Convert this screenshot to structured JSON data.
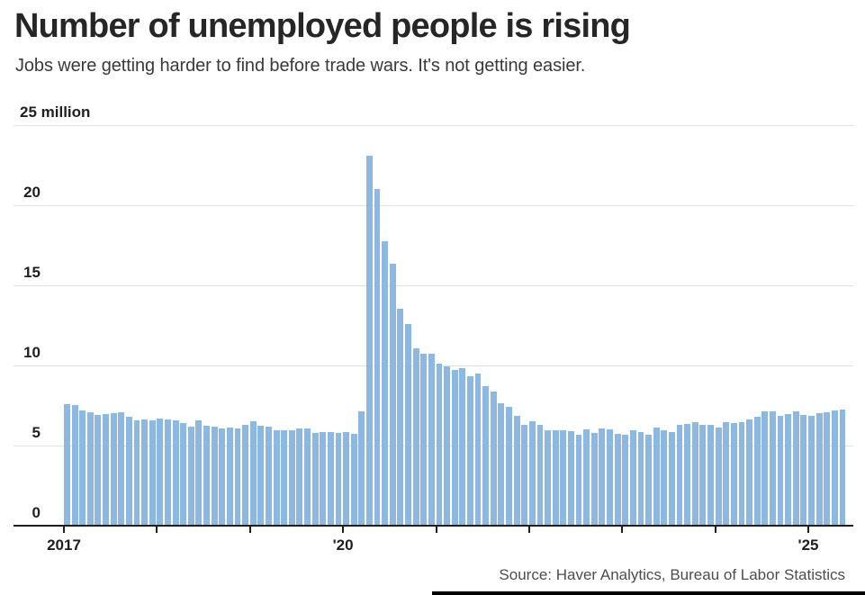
{
  "header": {
    "title": "Number of unemployed people is rising",
    "subtitle": "Jobs were getting harder to find before trade wars. It's not getting easier."
  },
  "source": "Source: Haver Analytics, Bureau of Labor Statistics",
  "colors": {
    "bar": "#8cb8e1",
    "grid": "#e2e2e2",
    "axis": "#1f1f1f",
    "title": "#262626",
    "subtitle": "#3a3a3a",
    "source": "#4d4d4d",
    "footer_rule": "#000000"
  },
  "chart_data": {
    "type": "bar",
    "title": "Number of unemployed people is rising",
    "series_name": "Unemployed people",
    "unit": "millions of people",
    "frequency": "monthly",
    "start": "2017-01",
    "end": "2025-05",
    "values": [
      7.58,
      7.51,
      7.18,
      7.09,
      6.92,
      6.98,
      7.0,
      7.09,
      6.79,
      6.58,
      6.64,
      6.59,
      6.7,
      6.66,
      6.57,
      6.42,
      6.19,
      6.57,
      6.26,
      6.19,
      6.06,
      6.11,
      6.05,
      6.31,
      6.53,
      6.24,
      6.19,
      5.93,
      5.95,
      5.97,
      6.07,
      6.06,
      5.78,
      5.87,
      5.86,
      5.79,
      5.85,
      5.72,
      7.14,
      23.11,
      20.99,
      17.75,
      16.34,
      13.55,
      12.58,
      11.06,
      10.74,
      10.74,
      10.13,
      9.97,
      9.71,
      9.81,
      9.32,
      9.48,
      8.7,
      8.38,
      7.67,
      7.42,
      6.88,
      6.32,
      6.51,
      6.27,
      5.96,
      5.94,
      5.98,
      5.91,
      5.67,
      6.01,
      5.77,
      6.06,
      6.02,
      5.72,
      5.69,
      5.94,
      5.84,
      5.66,
      6.1,
      5.96,
      5.84,
      6.3,
      6.36,
      6.46,
      6.29,
      6.27,
      6.12,
      6.46,
      6.43,
      6.49,
      6.65,
      6.81,
      7.16,
      7.12,
      6.83,
      6.98,
      7.12,
      6.89,
      6.85,
      7.05,
      7.08,
      7.17,
      7.24
    ],
    "y_axis": {
      "range": [
        0,
        25
      ],
      "ticks": [
        0,
        5,
        10,
        15,
        20,
        25
      ],
      "top_tick_label": "25 million"
    },
    "x_axis": {
      "tick_years": [
        2017,
        2018,
        2019,
        2020,
        2021,
        2022,
        2023,
        2024,
        2025
      ],
      "labels": [
        {
          "year": 2017,
          "label": "2017"
        },
        {
          "year": 2020,
          "label": "'20"
        },
        {
          "year": 2025,
          "label": "'25"
        }
      ]
    },
    "grid": true,
    "legend": false
  }
}
